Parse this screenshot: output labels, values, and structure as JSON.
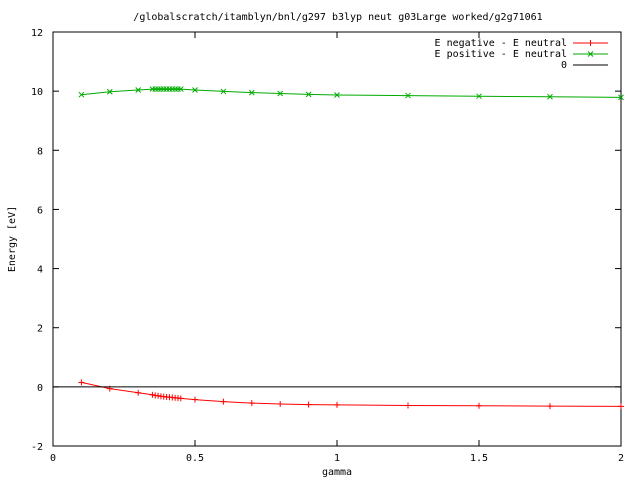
{
  "chart_data": {
    "type": "line",
    "title": "/globalscratch/itamblyn/bnl/g297 b3lyp neut g03Large worked/g2g71061",
    "xlabel": "gamma",
    "ylabel": "Energy [eV]",
    "xlim": [
      0,
      2
    ],
    "ylim": [
      -2,
      12
    ],
    "xticks": [
      0,
      0.5,
      1,
      1.5,
      2
    ],
    "xtick_labels": [
      "0",
      "0.5",
      "1",
      "1.5",
      "2"
    ],
    "yticks": [
      -2,
      0,
      2,
      4,
      6,
      8,
      10,
      12
    ],
    "ytick_labels": [
      "-2",
      "0",
      "2",
      "4",
      "6",
      "8",
      "10",
      "12"
    ],
    "grid": false,
    "legend_position": "top-right",
    "series": [
      {
        "name": "E negative - E neutral",
        "color": "#ff0000",
        "marker": "plus",
        "x": [
          0.1,
          0.2,
          0.3,
          0.35,
          0.36,
          0.37,
          0.38,
          0.39,
          0.4,
          0.41,
          0.42,
          0.43,
          0.44,
          0.45,
          0.5,
          0.6,
          0.7,
          0.8,
          0.9,
          1.0,
          1.25,
          1.5,
          1.75,
          2.0
        ],
        "y": [
          0.15,
          -0.06,
          -0.2,
          -0.27,
          -0.29,
          -0.3,
          -0.32,
          -0.33,
          -0.34,
          -0.35,
          -0.36,
          -0.37,
          -0.38,
          -0.39,
          -0.43,
          -0.5,
          -0.55,
          -0.58,
          -0.6,
          -0.61,
          -0.63,
          -0.64,
          -0.65,
          -0.66
        ]
      },
      {
        "name": "E positive - E neutral",
        "color": "#00aa00",
        "marker": "cross",
        "x": [
          0.1,
          0.2,
          0.3,
          0.35,
          0.36,
          0.37,
          0.38,
          0.39,
          0.4,
          0.41,
          0.42,
          0.43,
          0.44,
          0.45,
          0.5,
          0.6,
          0.7,
          0.8,
          0.9,
          1.0,
          1.25,
          1.5,
          1.75,
          2.0
        ],
        "y": [
          9.88,
          9.98,
          10.04,
          10.07,
          10.07,
          10.07,
          10.07,
          10.07,
          10.07,
          10.07,
          10.07,
          10.07,
          10.07,
          10.07,
          10.04,
          9.99,
          9.95,
          9.92,
          9.89,
          9.87,
          9.85,
          9.83,
          9.81,
          9.79
        ]
      },
      {
        "name": "0",
        "color": "#000000",
        "marker": "none",
        "x": [
          0,
          2
        ],
        "y": [
          0,
          0
        ]
      }
    ]
  }
}
